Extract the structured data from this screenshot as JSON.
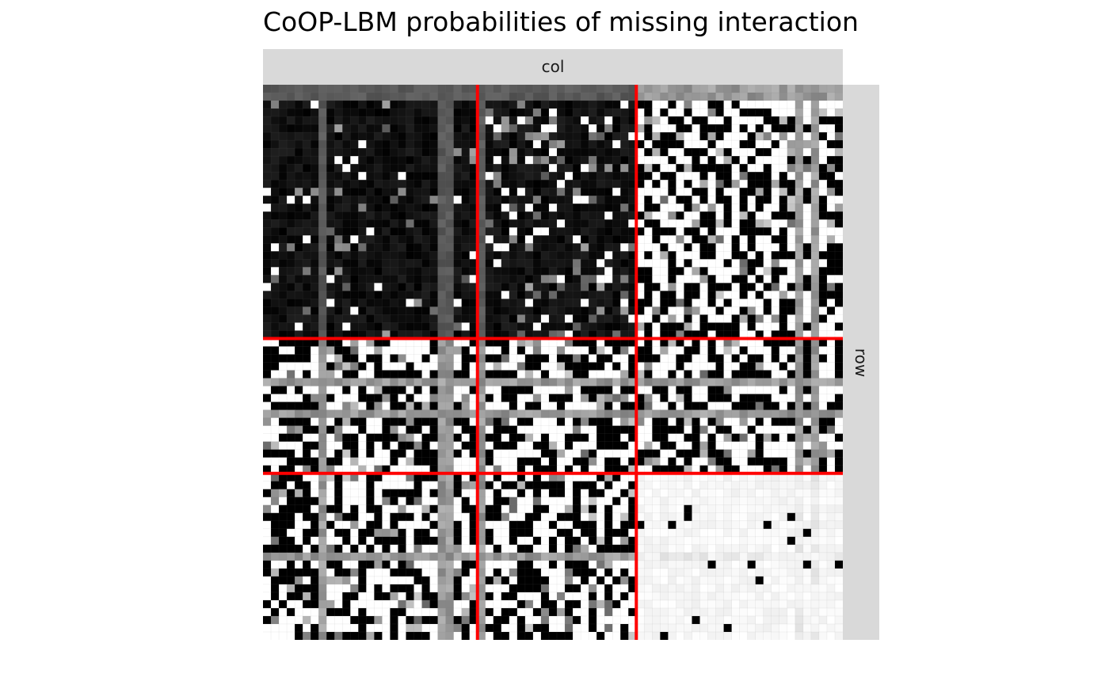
{
  "chart_data": {
    "type": "heatmap",
    "title": "CoOP-LBM probabilities of missing interaction",
    "facet_col_label": "col",
    "facet_row_label": "row",
    "n_rows": 70,
    "n_cols": 73,
    "value_range": [
      0,
      1
    ],
    "color_scale": {
      "low": "#000000",
      "high": "#ffffff"
    },
    "row_blocks": [
      {
        "start": 0,
        "end": 32
      },
      {
        "start": 32,
        "end": 49
      },
      {
        "start": 49,
        "end": 70
      }
    ],
    "col_blocks": [
      {
        "start": 0,
        "end": 27
      },
      {
        "start": 27,
        "end": 47
      },
      {
        "start": 47,
        "end": 73
      }
    ],
    "block_mean_probability": [
      [
        0.06,
        0.15,
        0.55
      ],
      [
        0.55,
        0.55,
        0.55
      ],
      [
        0.55,
        0.55,
        0.97
      ]
    ],
    "block_separator_color": "#ff0000",
    "seed": 7
  }
}
